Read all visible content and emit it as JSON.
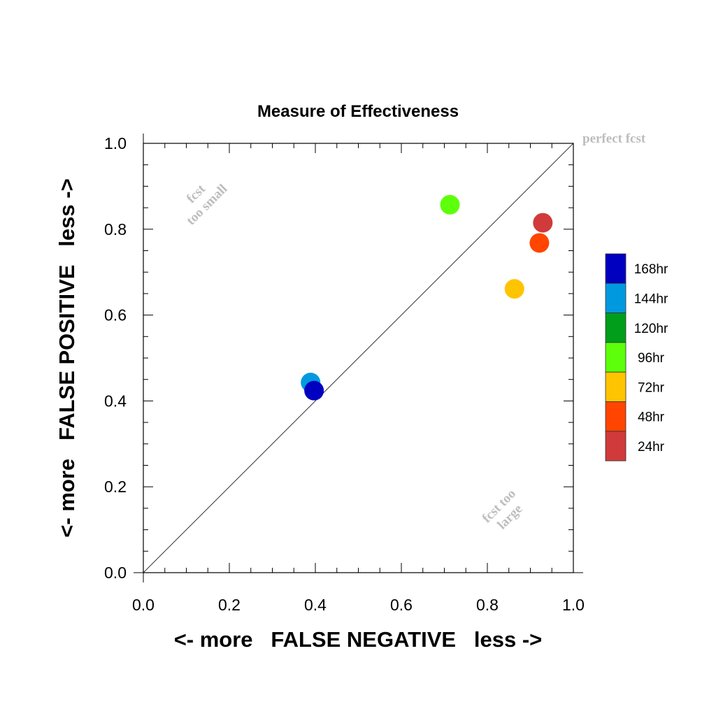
{
  "chart_data": {
    "type": "scatter",
    "title": "Measure of Effectiveness",
    "xlabel": "<- more   FALSE NEGATIVE   less ->",
    "ylabel": "<- more   FALSE POSITIVE   less ->",
    "xlim": [
      0.0,
      1.0
    ],
    "ylim": [
      0.0,
      1.0
    ],
    "x_ticks": [
      "0.0",
      "0.2",
      "0.4",
      "0.6",
      "0.8",
      "1.0"
    ],
    "y_ticks": [
      "0.0",
      "0.2",
      "0.4",
      "0.6",
      "0.8",
      "1.0"
    ],
    "grid": false,
    "reference_line": "diagonal",
    "legend_position": "right",
    "annotations": {
      "perfect": "perfect fcst",
      "too_small_line1": "fcst",
      "too_small_line2": "too small",
      "too_large_line1": "fcst too",
      "too_large_line2": "large"
    },
    "series": [
      {
        "name": "168hr",
        "color": "#0000c0",
        "x": 0.397,
        "y": 0.424
      },
      {
        "name": "144hr",
        "color": "#0099e0",
        "x": 0.389,
        "y": 0.443
      },
      {
        "name": "120hr",
        "color": "#009e1a",
        "x": null,
        "y": null
      },
      {
        "name": "96hr",
        "color": "#5dff0a",
        "x": 0.713,
        "y": 0.857
      },
      {
        "name": "72hr",
        "color": "#ffc400",
        "x": 0.863,
        "y": 0.661
      },
      {
        "name": "48hr",
        "color": "#ff4500",
        "x": 0.921,
        "y": 0.768
      },
      {
        "name": "24hr",
        "color": "#d03a3a",
        "x": 0.929,
        "y": 0.815
      }
    ]
  }
}
